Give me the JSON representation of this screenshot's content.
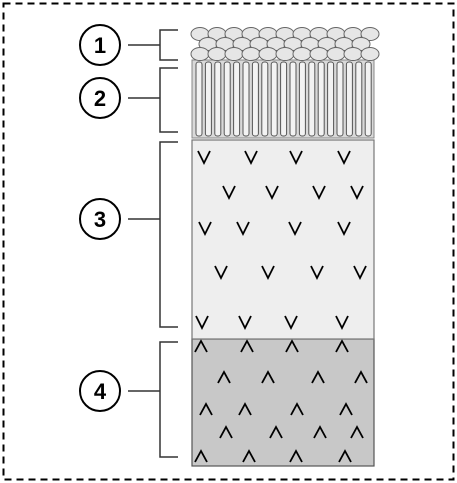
{
  "labels": [
    {
      "id": "layer-1",
      "text": "1"
    },
    {
      "id": "layer-2",
      "text": "2"
    },
    {
      "id": "layer-3",
      "text": "3"
    },
    {
      "id": "layer-4",
      "text": "4"
    }
  ],
  "colors": {
    "border": "#000000",
    "layer_1_sphere": "#e6e6e6",
    "layer_2_rod": "#f0f0f0",
    "layer_3_fill": "#eeeeee",
    "layer_4_fill": "#c8c8c8",
    "bracket": "#333333"
  },
  "glyphs": {
    "layer_3_mark": "v-mark",
    "layer_4_mark": "caret-mark"
  }
}
